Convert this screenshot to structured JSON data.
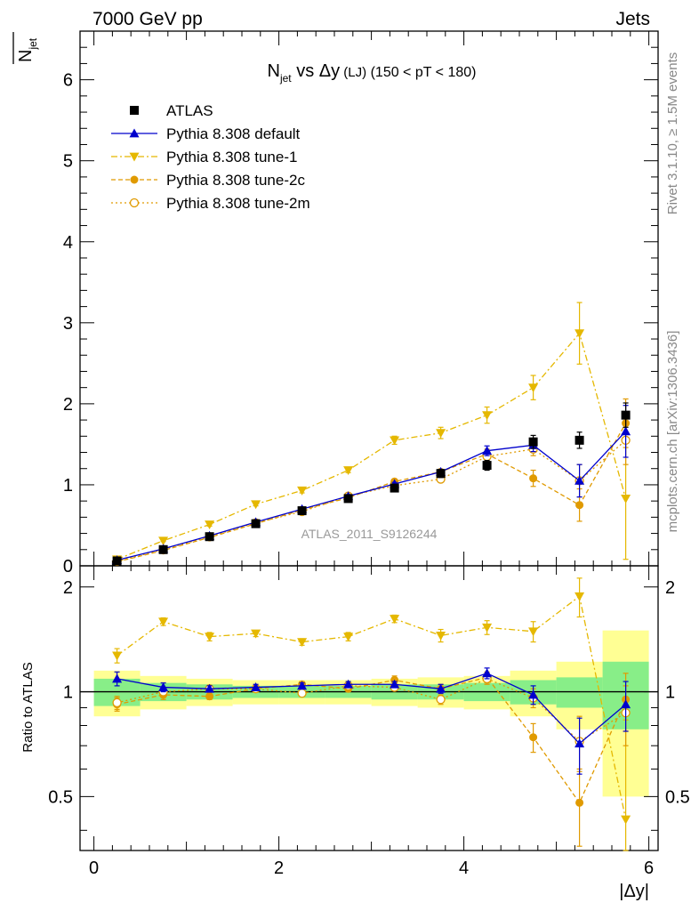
{
  "header": {
    "left": "7000 GeV pp",
    "right": "Jets"
  },
  "side_labels": {
    "rivet": "Rivet 3.1.10, ≥ 1.5M events",
    "mcplots": "mcplots.cern.ch [arXiv:1306.3436]"
  },
  "chart_data": {
    "type": "scatter",
    "title_parts": {
      "main": "N",
      "sub": "jet",
      "mid": " vs Δy",
      "small": " (LJ)",
      "range": " (150 < pT < 180)"
    },
    "ylabel_parts": {
      "main": "N",
      "sub": "jet"
    },
    "xlabel": "|Δy|",
    "ratio_ylabel": "Ratio to ATLAS",
    "watermark": "ATLAS_2011_S9126244",
    "xlim": [
      -0.15,
      6.1
    ],
    "ylim": [
      0,
      6.6
    ],
    "ratio_ylim": [
      0.35,
      2.3
    ],
    "xticks": [
      0,
      2,
      4,
      6
    ],
    "yticks": [
      0,
      1,
      2,
      3,
      4,
      5,
      6
    ],
    "ratio_yticks": [
      0.5,
      1,
      2
    ],
    "x": [
      0.25,
      0.75,
      1.25,
      1.75,
      2.25,
      2.75,
      3.25,
      3.75,
      4.25,
      4.75,
      5.25,
      5.75
    ],
    "bin_edges": [
      0,
      0.5,
      1,
      1.5,
      2,
      2.5,
      3,
      3.5,
      4,
      4.5,
      5,
      5.5,
      6
    ],
    "atlas": {
      "name": "ATLAS",
      "values": [
        0.06,
        0.2,
        0.36,
        0.52,
        0.68,
        0.83,
        0.96,
        1.14,
        1.24,
        1.53,
        1.55,
        1.86
      ],
      "err": [
        0.01,
        0.01,
        0.02,
        0.02,
        0.03,
        0.03,
        0.04,
        0.05,
        0.06,
        0.08,
        0.1,
        0.15
      ]
    },
    "ratio_band_inner": [
      0.09,
      0.06,
      0.05,
      0.04,
      0.04,
      0.04,
      0.05,
      0.05,
      0.06,
      0.08,
      0.1,
      0.22
    ],
    "ratio_band_outer": [
      0.15,
      0.11,
      0.09,
      0.08,
      0.08,
      0.08,
      0.09,
      0.1,
      0.11,
      0.15,
      0.22,
      0.5
    ],
    "series": [
      {
        "name": "Pythia 8.308 default",
        "color": "#0000cc",
        "dash": "",
        "marker": "triangle-up",
        "values": [
          0.07,
          0.21,
          0.37,
          0.54,
          0.7,
          0.86,
          1.01,
          1.16,
          1.42,
          1.49,
          1.05,
          1.66
        ],
        "err": [
          0.005,
          0.008,
          0.01,
          0.012,
          0.015,
          0.02,
          0.02,
          0.03,
          0.06,
          0.08,
          0.2,
          0.32
        ],
        "ratio": [
          1.09,
          1.03,
          1.02,
          1.03,
          1.04,
          1.05,
          1.05,
          1.02,
          1.13,
          0.98,
          0.71,
          0.92
        ],
        "ratio_err": [
          0.05,
          0.03,
          0.02,
          0.02,
          0.02,
          0.02,
          0.02,
          0.03,
          0.04,
          0.06,
          0.13,
          0.15
        ]
      },
      {
        "name": "Pythia 8.308 tune-1",
        "color": "#e5b800",
        "dash": "7,3,2,3",
        "marker": "triangle-down",
        "values": [
          0.08,
          0.31,
          0.51,
          0.76,
          0.93,
          1.18,
          1.55,
          1.64,
          1.86,
          2.2,
          2.87,
          0.83
        ],
        "err": [
          0.01,
          0.01,
          0.02,
          0.02,
          0.03,
          0.03,
          0.05,
          0.07,
          0.1,
          0.15,
          0.38,
          0.75
        ],
        "ratio": [
          1.27,
          1.59,
          1.44,
          1.47,
          1.39,
          1.44,
          1.62,
          1.45,
          1.53,
          1.49,
          1.88,
          0.43
        ],
        "ratio_err": [
          0.06,
          0.04,
          0.04,
          0.03,
          0.03,
          0.04,
          0.04,
          0.06,
          0.07,
          0.1,
          0.24,
          0.4
        ]
      },
      {
        "name": "Pythia 8.308 tune-2c",
        "color": "#e09a00",
        "dash": "5,3",
        "marker": "circle-filled",
        "values": [
          0.05,
          0.19,
          0.35,
          0.52,
          0.69,
          0.84,
          1.04,
          1.16,
          1.38,
          1.08,
          0.75,
          1.76
        ],
        "err": [
          0.005,
          0.008,
          0.01,
          0.012,
          0.015,
          0.02,
          0.02,
          0.03,
          0.06,
          0.1,
          0.2,
          0.3
        ],
        "ratio": [
          0.92,
          0.98,
          0.97,
          1.02,
          1.05,
          1.02,
          1.08,
          1.02,
          1.1,
          0.74,
          0.48,
          0.95
        ],
        "ratio_err": [
          0.04,
          0.03,
          0.02,
          0.02,
          0.02,
          0.02,
          0.03,
          0.03,
          0.04,
          0.07,
          0.12,
          0.18
        ]
      },
      {
        "name": "Pythia 8.308 tune-2m",
        "color": "#e09a00",
        "dash": "2,3",
        "marker": "circle-open",
        "values": [
          0.055,
          0.2,
          0.36,
          0.53,
          0.67,
          0.86,
          0.99,
          1.07,
          1.35,
          1.44,
          1.05,
          1.55
        ],
        "err": [
          0.005,
          0.008,
          0.01,
          0.012,
          0.015,
          0.02,
          0.02,
          0.03,
          0.06,
          0.08,
          0.2,
          0.3
        ],
        "ratio": [
          0.93,
          1.0,
          1.02,
          1.02,
          0.99,
          1.04,
          1.03,
          0.95,
          1.09,
          0.96,
          0.72,
          0.87
        ],
        "ratio_err": [
          0.04,
          0.03,
          0.02,
          0.02,
          0.02,
          0.02,
          0.02,
          0.03,
          0.04,
          0.06,
          0.13,
          0.17
        ]
      }
    ]
  }
}
